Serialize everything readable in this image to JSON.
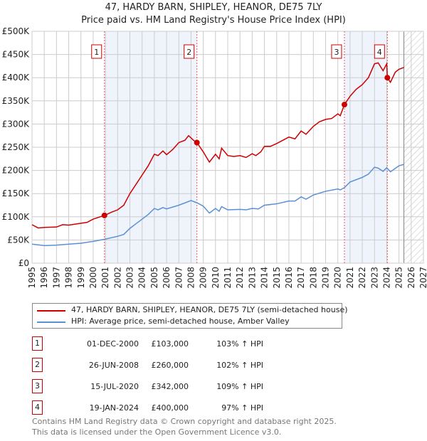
{
  "chart_data": {
    "type": "line",
    "title": "47, HARDY BARN, SHIPLEY, HEANOR, DE75 7LY",
    "subtitle": "Price paid vs. HM Land Registry's House Price Index (HPI)",
    "xlim": [
      1995,
      2027
    ],
    "ylim": [
      0,
      500000
    ],
    "y_ticks": [
      "£0",
      "£50K",
      "£100K",
      "£150K",
      "£200K",
      "£250K",
      "£300K",
      "£350K",
      "£400K",
      "£450K",
      "£500K"
    ],
    "x_ticks": [
      "1995",
      "1996",
      "1997",
      "1998",
      "1999",
      "2000",
      "2001",
      "2002",
      "2003",
      "2004",
      "2005",
      "2006",
      "2007",
      "2008",
      "2009",
      "2010",
      "2011",
      "2012",
      "2013",
      "2014",
      "2015",
      "2016",
      "2017",
      "2018",
      "2019",
      "2020",
      "2021",
      "2022",
      "2023",
      "2024",
      "2025",
      "2026",
      "2027"
    ],
    "forecast_start": 2025.4,
    "series": [
      {
        "name": "47, HARDY BARN, SHIPLEY, HEANOR, DE75 7LY (semi-detached house)",
        "color": "#cc0000",
        "points": [
          [
            1995,
            83
          ],
          [
            1995.5,
            76
          ],
          [
            1996,
            77
          ],
          [
            1997,
            78
          ],
          [
            1997.5,
            83
          ],
          [
            1998,
            82
          ],
          [
            1999,
            86
          ],
          [
            1999.5,
            88
          ],
          [
            2000,
            95
          ],
          [
            2000.92,
            103
          ],
          [
            2001.5,
            110
          ],
          [
            2002,
            115
          ],
          [
            2002.5,
            125
          ],
          [
            2003,
            150
          ],
          [
            2003.5,
            170
          ],
          [
            2004,
            190
          ],
          [
            2004.5,
            210
          ],
          [
            2005,
            235
          ],
          [
            2005.3,
            232
          ],
          [
            2005.7,
            242
          ],
          [
            2006,
            234
          ],
          [
            2006.5,
            245
          ],
          [
            2007,
            260
          ],
          [
            2007.5,
            265
          ],
          [
            2007.8,
            275
          ],
          [
            2008.2,
            265
          ],
          [
            2008.48,
            260
          ],
          [
            2009,
            240
          ],
          [
            2009.5,
            218
          ],
          [
            2010,
            235
          ],
          [
            2010.3,
            225
          ],
          [
            2010.5,
            248
          ],
          [
            2011,
            232
          ],
          [
            2011.5,
            230
          ],
          [
            2012,
            232
          ],
          [
            2012.5,
            228
          ],
          [
            2013,
            236
          ],
          [
            2013.3,
            232
          ],
          [
            2013.7,
            240
          ],
          [
            2014,
            252
          ],
          [
            2014.5,
            252
          ],
          [
            2015,
            258
          ],
          [
            2016,
            272
          ],
          [
            2016.5,
            268
          ],
          [
            2017,
            285
          ],
          [
            2017.4,
            278
          ],
          [
            2018,
            295
          ],
          [
            2018.5,
            305
          ],
          [
            2019,
            310
          ],
          [
            2019.5,
            312
          ],
          [
            2020,
            322
          ],
          [
            2020.2,
            318
          ],
          [
            2020.54,
            342
          ],
          [
            2021,
            360
          ],
          [
            2021.5,
            375
          ],
          [
            2022,
            385
          ],
          [
            2022.5,
            400
          ],
          [
            2023,
            430
          ],
          [
            2023.3,
            432
          ],
          [
            2023.7,
            415
          ],
          [
            2024,
            430
          ],
          [
            2024.05,
            400
          ],
          [
            2024.3,
            390
          ],
          [
            2024.7,
            412
          ],
          [
            2025,
            418
          ],
          [
            2025.4,
            422
          ]
        ]
      },
      {
        "name": "HPI: Average price, semi-detached house, Amber Valley",
        "color": "#5b8fd6",
        "points": [
          [
            1995,
            41
          ],
          [
            1996,
            38
          ],
          [
            1997,
            39
          ],
          [
            1998,
            41
          ],
          [
            1999,
            43
          ],
          [
            2000,
            47
          ],
          [
            2001,
            52
          ],
          [
            2002,
            58
          ],
          [
            2002.5,
            62
          ],
          [
            2003,
            75
          ],
          [
            2003.5,
            85
          ],
          [
            2004,
            95
          ],
          [
            2004.5,
            105
          ],
          [
            2005,
            118
          ],
          [
            2005.3,
            115
          ],
          [
            2005.7,
            120
          ],
          [
            2006,
            117
          ],
          [
            2007,
            125
          ],
          [
            2007.5,
            130
          ],
          [
            2008,
            135
          ],
          [
            2008.5,
            130
          ],
          [
            2009,
            123
          ],
          [
            2009.5,
            108
          ],
          [
            2010,
            118
          ],
          [
            2010.3,
            112
          ],
          [
            2010.5,
            122
          ],
          [
            2011,
            115
          ],
          [
            2012,
            116
          ],
          [
            2012.5,
            115
          ],
          [
            2013,
            118
          ],
          [
            2013.5,
            117
          ],
          [
            2014,
            125
          ],
          [
            2015,
            128
          ],
          [
            2016,
            134
          ],
          [
            2016.5,
            134
          ],
          [
            2017,
            143
          ],
          [
            2017.4,
            138
          ],
          [
            2018,
            147
          ],
          [
            2019,
            155
          ],
          [
            2020,
            160
          ],
          [
            2020.2,
            158
          ],
          [
            2020.54,
            163
          ],
          [
            2021,
            175
          ],
          [
            2022,
            185
          ],
          [
            2022.5,
            192
          ],
          [
            2023,
            207
          ],
          [
            2023.3,
            205
          ],
          [
            2023.7,
            198
          ],
          [
            2024,
            206
          ],
          [
            2024.3,
            197
          ],
          [
            2025,
            210
          ],
          [
            2025.4,
            213
          ]
        ]
      }
    ],
    "sales": [
      {
        "label": "1",
        "x": 2000.92,
        "y": 103,
        "date": "01-DEC-2000",
        "price": "£103,000",
        "hpi": "103% ↑ HPI"
      },
      {
        "label": "2",
        "x": 2008.48,
        "y": 260,
        "date": "26-JUN-2008",
        "price": "£260,000",
        "hpi": "102% ↑ HPI"
      },
      {
        "label": "3",
        "x": 2020.54,
        "y": 342,
        "date": "15-JUL-2020",
        "price": "£342,000",
        "hpi": "109% ↑ HPI"
      },
      {
        "label": "4",
        "x": 2024.05,
        "y": 400,
        "date": "19-JAN-2024",
        "price": "£400,000",
        "hpi": "97% ↑ HPI"
      }
    ]
  },
  "footer": [
    "Contains HM Land Registry data © Crown copyright and database right 2025.",
    "This data is licensed under the Open Government Licence v3.0."
  ]
}
